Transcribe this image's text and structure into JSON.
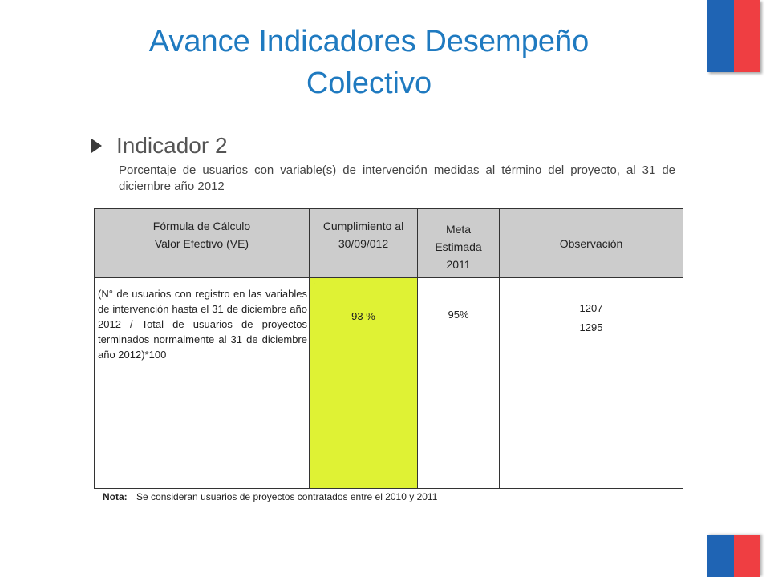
{
  "slide": {
    "title_line1": "Avance Indicadores Desempeño",
    "title_line2": "Colectivo",
    "indicator_label": "Indicador 2",
    "description": "Porcentaje de usuarios  con variable(s) de intervención medidas al término  del proyecto,  al  31   de diciembre año 2012"
  },
  "table": {
    "headers": {
      "formula": [
        "Fórmula de Cálculo",
        "Valor Efectivo  (VE)"
      ],
      "cumplimiento": [
        "Cumplimiento al",
        "30/09/012"
      ],
      "meta": [
        "Meta",
        "Estimada",
        "2011"
      ],
      "observacion": "Observación"
    },
    "row": {
      "formula": "(N° de usuarios con registro en las variables de intervención hasta el 31 de diciembre año 2012  /  Total de usuarios de proyectos  terminados normalmente al 31 de diciembre año 2012)*100",
      "cumplimiento_mark": "·",
      "cumplimiento": "93 %",
      "meta": "95%",
      "obs_numerator": "1207",
      "obs_denominator": "1295"
    }
  },
  "note": {
    "label": "Nota:",
    "text": "Se consideran usuarios de proyectos contratados entre el 2010 y 2011"
  },
  "colors": {
    "title": "#1f7ac0",
    "flag_blue": "#1f64b4",
    "flag_red": "#ef3e42",
    "highlight": "#dff234",
    "header_bg": "#cccccc"
  }
}
